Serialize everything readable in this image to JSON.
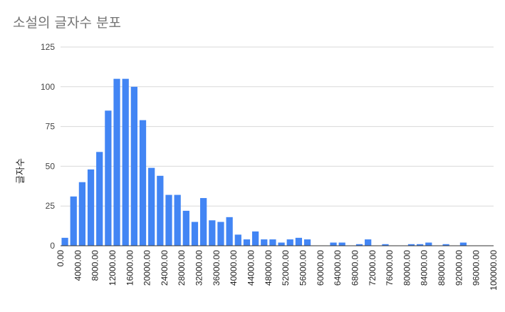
{
  "chart_data": {
    "type": "bar",
    "title": "소설의 글자수 분포",
    "xlabel": "",
    "ylabel": "글자수",
    "ylim": [
      0,
      125
    ],
    "y_ticks": [
      0,
      25,
      50,
      75,
      100,
      125
    ],
    "x_tick_labels": [
      "0.00",
      "4000.00",
      "8000.00",
      "12000.00",
      "16000.00",
      "20000.00",
      "24000.00",
      "28000.00",
      "32000.00",
      "36000.00",
      "40000.00",
      "44000.00",
      "48000.00",
      "52000.00",
      "56000.00",
      "60000.00",
      "64000.00",
      "68000.00",
      "72000.00",
      "76000.00",
      "80000.00",
      "84000.00",
      "88000.00",
      "92000.00",
      "96000.00",
      "100000.00"
    ],
    "xlim": [
      0,
      100000
    ],
    "bin_width": 2000,
    "grid": true,
    "bar_color": "#4285f4",
    "values": [
      5,
      31,
      40,
      48,
      59,
      85,
      105,
      105,
      100,
      79,
      49,
      44,
      32,
      32,
      22,
      15,
      30,
      16,
      15,
      18,
      7,
      4,
      9,
      4,
      4,
      2,
      4,
      5,
      4,
      0,
      0,
      2,
      2,
      0,
      1,
      4,
      0,
      1,
      0,
      0,
      1,
      1,
      2,
      0,
      1,
      0,
      2,
      0,
      0,
      0
    ]
  }
}
